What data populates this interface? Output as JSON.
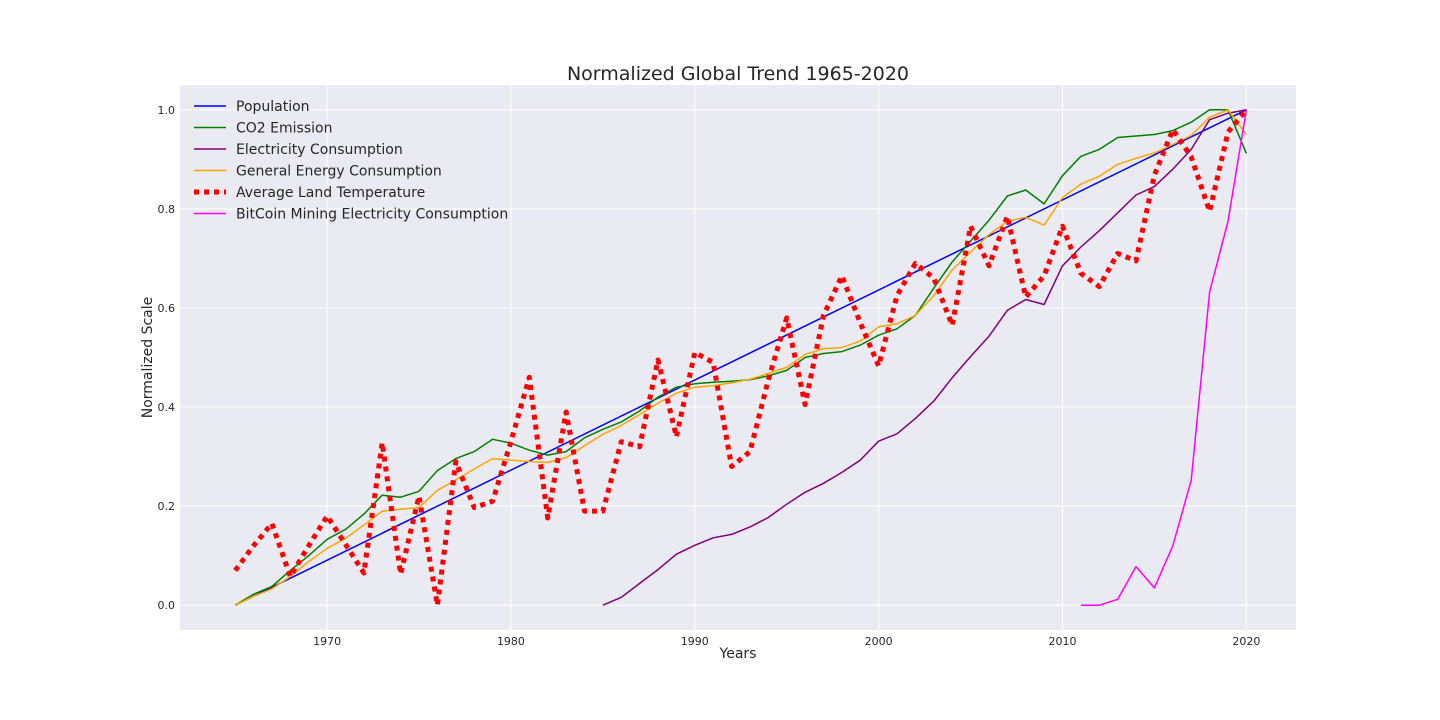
{
  "chart_data": {
    "type": "line",
    "title": "Normalized Global Trend 1965-2020",
    "xlabel": "Years",
    "ylabel": "Normalized Scale",
    "xlim": [
      1962,
      2022.7
    ],
    "ylim": [
      -0.05,
      1.05
    ],
    "xticks": [
      1970,
      1980,
      1990,
      2000,
      2010,
      2020
    ],
    "yticks": [
      0.0,
      0.2,
      0.4,
      0.6,
      0.8,
      1.0
    ],
    "xtick_labels": [
      "1970",
      "1980",
      "1990",
      "2000",
      "2010",
      "2020"
    ],
    "ytick_labels": [
      "0.0",
      "0.2",
      "0.4",
      "0.6",
      "0.8",
      "1.0"
    ],
    "grid": true,
    "legend_position": "top-left",
    "background": "#eaeaf2",
    "series": [
      {
        "name": "Population",
        "color": "#0000ff",
        "style": "solid",
        "x": [
          1965,
          2020
        ],
        "y": [
          0.0,
          1.0
        ]
      },
      {
        "name": "CO2 Emission",
        "color": "#008000",
        "style": "solid",
        "x": [
          1965,
          1966,
          1967,
          1968,
          1969,
          1970,
          1971,
          1972,
          1973,
          1974,
          1975,
          1976,
          1977,
          1978,
          1979,
          1980,
          1981,
          1982,
          1983,
          1984,
          1985,
          1986,
          1987,
          1988,
          1989,
          1990,
          1991,
          1992,
          1993,
          1994,
          1995,
          1996,
          1997,
          1998,
          1999,
          2000,
          2001,
          2002,
          2003,
          2004,
          2005,
          2006,
          2007,
          2008,
          2009,
          2010,
          2011,
          2012,
          2013,
          2014,
          2015,
          2016,
          2017,
          2018,
          2019,
          2020
        ],
        "y": [
          0.0,
          0.022,
          0.038,
          0.07,
          0.1,
          0.133,
          0.153,
          0.184,
          0.222,
          0.218,
          0.23,
          0.272,
          0.296,
          0.31,
          0.335,
          0.327,
          0.313,
          0.303,
          0.31,
          0.338,
          0.355,
          0.37,
          0.392,
          0.42,
          0.44,
          0.447,
          0.45,
          0.452,
          0.455,
          0.463,
          0.474,
          0.5,
          0.508,
          0.512,
          0.525,
          0.545,
          0.558,
          0.585,
          0.64,
          0.693,
          0.735,
          0.777,
          0.826,
          0.838,
          0.81,
          0.867,
          0.906,
          0.92,
          0.944,
          0.947,
          0.95,
          0.958,
          0.975,
          1.0,
          1.0,
          0.912
        ]
      },
      {
        "name": "Electricity Consumption",
        "color": "#800080",
        "style": "solid",
        "x": [
          1985,
          1986,
          1987,
          1988,
          1989,
          1990,
          1991,
          1992,
          1993,
          1994,
          1995,
          1996,
          1997,
          1998,
          1999,
          2000,
          2001,
          2002,
          2003,
          2004,
          2005,
          2006,
          2007,
          2008,
          2009,
          2010,
          2011,
          2012,
          2013,
          2014,
          2015,
          2016,
          2017,
          2018,
          2019,
          2020
        ],
        "y": [
          0.0,
          0.016,
          0.044,
          0.072,
          0.103,
          0.121,
          0.136,
          0.143,
          0.158,
          0.177,
          0.204,
          0.228,
          0.246,
          0.268,
          0.293,
          0.331,
          0.346,
          0.377,
          0.412,
          0.459,
          0.502,
          0.543,
          0.595,
          0.617,
          0.607,
          0.685,
          0.723,
          0.756,
          0.792,
          0.828,
          0.845,
          0.88,
          0.92,
          0.98,
          0.993,
          1.0
        ]
      },
      {
        "name": "General Energy Consumption",
        "color": "#ffa500",
        "style": "solid",
        "x": [
          1965,
          1966,
          1967,
          1968,
          1969,
          1970,
          1971,
          1972,
          1973,
          1974,
          1975,
          1976,
          1977,
          1978,
          1979,
          1980,
          1981,
          1982,
          1983,
          1984,
          1985,
          1986,
          1987,
          1988,
          1989,
          1990,
          1991,
          1992,
          1993,
          1994,
          1995,
          1996,
          1997,
          1998,
          1999,
          2000,
          2001,
          2002,
          2003,
          2004,
          2005,
          2006,
          2007,
          2008,
          2009,
          2010,
          2011,
          2012,
          2013,
          2014,
          2015,
          2016,
          2017,
          2018,
          2019,
          2020
        ],
        "y": [
          0.0,
          0.018,
          0.033,
          0.058,
          0.088,
          0.115,
          0.135,
          0.162,
          0.19,
          0.194,
          0.197,
          0.232,
          0.253,
          0.275,
          0.296,
          0.293,
          0.29,
          0.288,
          0.298,
          0.322,
          0.345,
          0.363,
          0.385,
          0.408,
          0.428,
          0.44,
          0.443,
          0.449,
          0.456,
          0.468,
          0.48,
          0.506,
          0.518,
          0.52,
          0.533,
          0.562,
          0.568,
          0.585,
          0.625,
          0.677,
          0.713,
          0.748,
          0.775,
          0.783,
          0.767,
          0.823,
          0.85,
          0.866,
          0.89,
          0.902,
          0.913,
          0.93,
          0.948,
          0.985,
          1.0,
          0.95
        ]
      },
      {
        "name": "Average Land Temperature",
        "color": "#ff0000",
        "style": "dotted",
        "x": [
          1965,
          1966,
          1967,
          1968,
          1969,
          1970,
          1971,
          1972,
          1973,
          1974,
          1975,
          1976,
          1977,
          1978,
          1979,
          1980,
          1981,
          1982,
          1983,
          1984,
          1985,
          1986,
          1987,
          1988,
          1989,
          1990,
          1991,
          1992,
          1993,
          1994,
          1995,
          1996,
          1997,
          1998,
          1999,
          2000,
          2001,
          2002,
          2003,
          2004,
          2005,
          2006,
          2007,
          2008,
          2009,
          2010,
          2011,
          2012,
          2013,
          2014,
          2015,
          2016,
          2017,
          2018,
          2019,
          2020
        ],
        "y": [
          0.07,
          0.12,
          0.165,
          0.058,
          0.12,
          0.18,
          0.123,
          0.065,
          0.328,
          0.063,
          0.22,
          0.0,
          0.29,
          0.197,
          0.21,
          0.33,
          0.46,
          0.176,
          0.39,
          0.19,
          0.19,
          0.33,
          0.32,
          0.495,
          0.34,
          0.51,
          0.49,
          0.28,
          0.31,
          0.455,
          0.58,
          0.405,
          0.585,
          0.665,
          0.57,
          0.483,
          0.625,
          0.69,
          0.66,
          0.565,
          0.765,
          0.685,
          0.785,
          0.622,
          0.665,
          0.765,
          0.67,
          0.643,
          0.71,
          0.695,
          0.868,
          0.96,
          0.905,
          0.795,
          0.955,
          1.0
        ]
      },
      {
        "name": "BitCoin Mining Electricity Consumption",
        "color": "#ff00ff",
        "style": "solid",
        "x": [
          2011,
          2012,
          2013,
          2014,
          2015,
          2016,
          2017,
          2018,
          2019,
          2020
        ],
        "y": [
          0.0,
          0.0,
          0.012,
          0.078,
          0.035,
          0.12,
          0.252,
          0.632,
          0.775,
          1.0
        ]
      }
    ]
  }
}
